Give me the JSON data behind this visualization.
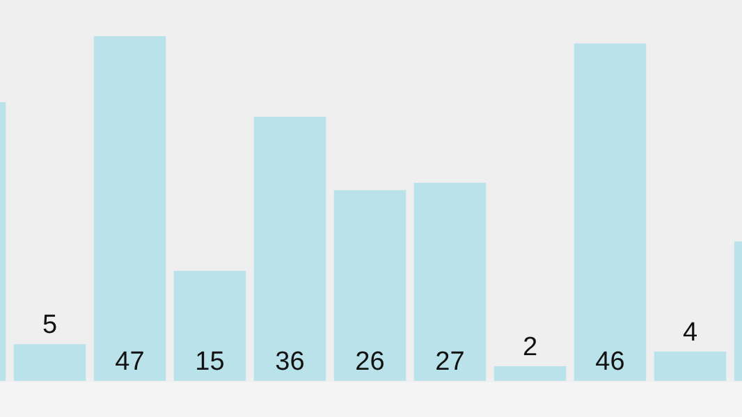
{
  "chart_data": {
    "type": "bar",
    "relative": false,
    "categories": [
      null,
      null,
      null,
      null,
      null,
      null,
      null,
      null,
      null,
      null,
      null
    ],
    "values": [
      38,
      5,
      47,
      15,
      36,
      26,
      27,
      2,
      46,
      4,
      19
    ],
    "value_labels": [
      null,
      "5",
      "47",
      "15",
      "36",
      "26",
      "27",
      "2",
      "46",
      "4",
      null
    ],
    "color": "#b9e2ea"
  }
}
